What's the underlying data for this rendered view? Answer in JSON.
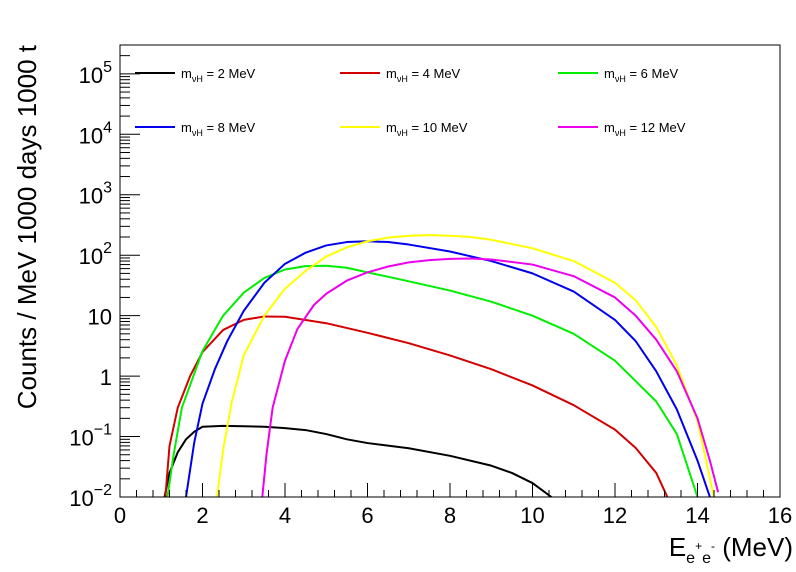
{
  "chart_data": {
    "type": "line",
    "title": "",
    "xlabel": {
      "base": "E",
      "sub": "e",
      "sup1": "+",
      "sub2": "e",
      "sup2": "-",
      "unit": " (MeV)"
    },
    "ylabel": "Counts / MeV 1000 days 1000 t",
    "xlim": [
      0,
      16
    ],
    "ylim": [
      0.01,
      300000
    ],
    "yscale": "log",
    "grid": false,
    "legend_placement": "top",
    "x_ticks": [
      "0",
      "2",
      "4",
      "6",
      "8",
      "10",
      "12",
      "14",
      "16"
    ],
    "y_ticks": [
      {
        "value": 0.01,
        "base": "10",
        "exp": "−2"
      },
      {
        "value": 0.1,
        "base": "10",
        "exp": "−1"
      },
      {
        "value": 1,
        "base": "1",
        "exp": ""
      },
      {
        "value": 10,
        "base": "10",
        "exp": ""
      },
      {
        "value": 100,
        "base": "10",
        "exp": "2"
      },
      {
        "value": 1000,
        "base": "10",
        "exp": "3"
      },
      {
        "value": 10000,
        "base": "10",
        "exp": "4"
      },
      {
        "value": 100000,
        "base": "10",
        "exp": "5"
      }
    ],
    "series": [
      {
        "name": "m_νH = 2 MeV",
        "label_sub": "νH",
        "label_text": " = 2 MeV",
        "color": "#000000",
        "x": [
          1.05,
          1.2,
          1.4,
          1.6,
          1.8,
          2.0,
          2.5,
          3.0,
          3.5,
          4.0,
          4.5,
          5.0,
          5.5,
          6.0,
          7.0,
          8.0,
          9.0,
          9.5,
          10.0,
          10.3,
          10.5
        ],
        "y": [
          0.008,
          0.025,
          0.055,
          0.09,
          0.12,
          0.145,
          0.15,
          0.148,
          0.145,
          0.138,
          0.128,
          0.11,
          0.09,
          0.078,
          0.064,
          0.048,
          0.033,
          0.025,
          0.017,
          0.012,
          0.0095
        ]
      },
      {
        "name": "m_νH = 4 MeV",
        "label_sub": "νH",
        "label_text": " = 4 MeV",
        "color": "#d40000",
        "x": [
          1.1,
          1.2,
          1.4,
          1.7,
          2.0,
          2.5,
          3.0,
          3.5,
          4.0,
          5.0,
          6.0,
          7.0,
          8.0,
          9.0,
          10.0,
          11.0,
          12.0,
          12.5,
          13.0,
          13.3
        ],
        "y": [
          0.01,
          0.07,
          0.3,
          1.0,
          2.5,
          5.8,
          8.5,
          9.7,
          9.6,
          7.5,
          5.2,
          3.5,
          2.2,
          1.3,
          0.7,
          0.33,
          0.13,
          0.065,
          0.025,
          0.009
        ]
      },
      {
        "name": "m_νH = 6 MeV",
        "label_sub": "νH",
        "label_text": " = 6 MeV",
        "color": "#00ee00",
        "x": [
          1.15,
          1.3,
          1.5,
          2.0,
          2.5,
          3.0,
          3.5,
          4.0,
          4.5,
          5.0,
          5.5,
          6.0,
          7.0,
          8.0,
          9.0,
          10.0,
          11.0,
          12.0,
          13.0,
          13.5,
          14.0
        ],
        "y": [
          0.01,
          0.05,
          0.3,
          2.6,
          10,
          24,
          42,
          58,
          66,
          67,
          62,
          52,
          37,
          26,
          17,
          10,
          5,
          1.8,
          0.38,
          0.11,
          0.01
        ]
      },
      {
        "name": "m_νH = 8 MeV",
        "label_sub": "νH",
        "label_text": " = 8 MeV",
        "color": "#0000ee",
        "x": [
          1.6,
          1.8,
          2.0,
          2.3,
          2.6,
          3.0,
          3.5,
          4.0,
          4.5,
          5.0,
          5.5,
          6.0,
          6.5,
          7.0,
          8.0,
          9.0,
          10.0,
          11.0,
          12.0,
          12.5,
          13.0,
          13.5,
          14.0,
          14.3
        ],
        "y": [
          0.01,
          0.08,
          0.35,
          1.3,
          3.8,
          12,
          35,
          72,
          110,
          145,
          165,
          170,
          165,
          150,
          115,
          80,
          50,
          25,
          8.5,
          3.8,
          1.2,
          0.28,
          0.04,
          0.01
        ]
      },
      {
        "name": "m_νH = 10 MeV",
        "label_sub": "νH",
        "label_text": " = 10 MeV",
        "color": "#ffff00",
        "x": [
          2.35,
          2.5,
          2.7,
          3.0,
          3.5,
          4.0,
          4.5,
          5.0,
          5.5,
          6.0,
          6.5,
          7.0,
          7.5,
          8.0,
          8.5,
          9.0,
          10.0,
          11.0,
          12.0,
          12.5,
          13.0,
          13.5,
          14.0,
          14.4
        ],
        "y": [
          0.01,
          0.06,
          0.35,
          2.2,
          10,
          28,
          55,
          95,
          135,
          170,
          195,
          210,
          215,
          210,
          200,
          180,
          130,
          80,
          35,
          18,
          6.5,
          1.5,
          0.18,
          0.01
        ]
      },
      {
        "name": "m_νH = 12 MeV",
        "label_sub": "νH",
        "label_text": " = 12 MeV",
        "color": "#ee00ee",
        "x": [
          3.45,
          3.55,
          3.7,
          4.0,
          4.3,
          4.7,
          5.0,
          5.5,
          6.0,
          6.5,
          7.0,
          7.5,
          8.0,
          8.5,
          9.0,
          10.0,
          11.0,
          12.0,
          12.5,
          13.0,
          13.5,
          14.0,
          14.3,
          14.5
        ],
        "y": [
          0.01,
          0.05,
          0.3,
          1.8,
          6,
          15,
          23,
          38,
          52,
          65,
          76,
          83,
          87,
          88,
          85,
          70,
          45,
          20,
          10,
          4,
          1.2,
          0.2,
          0.04,
          0.012
        ]
      }
    ]
  }
}
